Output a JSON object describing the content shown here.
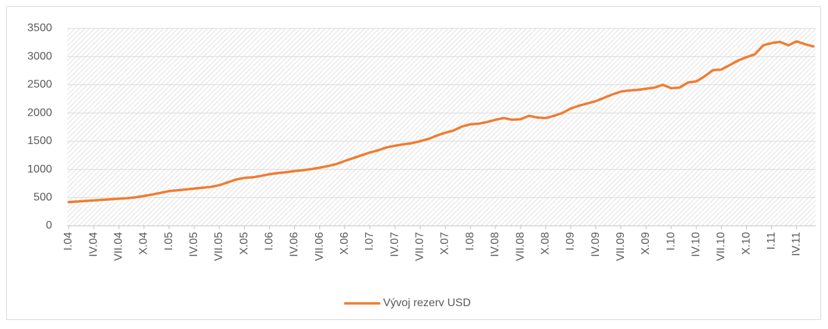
{
  "chart_data": {
    "type": "line",
    "categories": [
      "I.04",
      null,
      null,
      "IV.04",
      null,
      null,
      "VII.04",
      null,
      null,
      "X.04",
      null,
      null,
      "I.05",
      null,
      null,
      "IV.05",
      null,
      null,
      "VII.05",
      null,
      null,
      "X.05",
      null,
      null,
      "I.06",
      null,
      null,
      "IV.06",
      null,
      null,
      "VII.06",
      null,
      null,
      "X.06",
      null,
      null,
      "I.07",
      null,
      null,
      "IV.07",
      null,
      null,
      "VII.07",
      null,
      null,
      "X.07",
      null,
      null,
      "I.08",
      null,
      null,
      "IV.08",
      null,
      null,
      "VII.08",
      null,
      null,
      "X.08",
      null,
      null,
      "I.09",
      null,
      null,
      "IV.09",
      null,
      null,
      "VII.09",
      null,
      null,
      "X.09",
      null,
      null,
      "I.10",
      null,
      null,
      "IV.10",
      null,
      null,
      "VII.10",
      null,
      null,
      "X.10",
      null,
      null,
      "I.11",
      null,
      null,
      "IV.11",
      null,
      null
    ],
    "series": [
      {
        "name": "Vývoj rezerv USD",
        "color": "#ed7d31",
        "values": [
          420,
          430,
          440,
          450,
          460,
          470,
          480,
          490,
          505,
          530,
          555,
          585,
          615,
          630,
          645,
          660,
          675,
          690,
          720,
          770,
          820,
          850,
          860,
          885,
          915,
          935,
          950,
          970,
          985,
          1005,
          1030,
          1060,
          1095,
          1150,
          1200,
          1250,
          1300,
          1340,
          1390,
          1420,
          1445,
          1465,
          1500,
          1540,
          1600,
          1650,
          1690,
          1760,
          1800,
          1810,
          1840,
          1880,
          1910,
          1880,
          1890,
          1950,
          1920,
          1910,
          1950,
          2000,
          2080,
          2130,
          2170,
          2210,
          2270,
          2330,
          2380,
          2400,
          2410,
          2430,
          2450,
          2500,
          2440,
          2450,
          2540,
          2560,
          2650,
          2760,
          2770,
          2850,
          2930,
          2990,
          3040,
          3200,
          3240,
          3260,
          3200,
          3270,
          3220,
          3180
        ]
      }
    ],
    "ylim": [
      0,
      3500
    ],
    "yticks": [
      0,
      500,
      1000,
      1500,
      2000,
      2500,
      3000,
      3500
    ],
    "grid": true,
    "legend": "bottom"
  }
}
